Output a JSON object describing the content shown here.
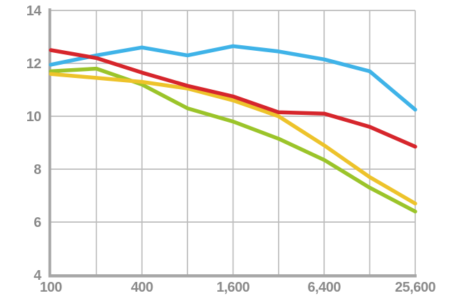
{
  "chart_data": {
    "type": "line",
    "title": "",
    "xlabel": "",
    "ylabel": "",
    "x_scale": "log2",
    "x_ticks": [
      100,
      200,
      400,
      800,
      1600,
      3200,
      6400,
      12800,
      25600
    ],
    "x_labeled_ticks": [
      {
        "value": 100,
        "label": "100"
      },
      {
        "value": 400,
        "label": "400"
      },
      {
        "value": 1600,
        "label": "1,600"
      },
      {
        "value": 6400,
        "label": "6,400"
      },
      {
        "value": 25600,
        "label": "25,600"
      }
    ],
    "y_min": 4,
    "y_max": 14,
    "y_ticks": [
      {
        "value": 14,
        "label": "14"
      },
      {
        "value": 12,
        "label": "12"
      },
      {
        "value": 10,
        "label": "10"
      },
      {
        "value": 8,
        "label": "8"
      },
      {
        "value": 6,
        "label": "6"
      },
      {
        "value": 4,
        "label": "4"
      }
    ],
    "grid": true,
    "legend": "none",
    "series": [
      {
        "name": "blue-series",
        "color": "#3FB3E8",
        "values": [
          11.95,
          12.3,
          12.6,
          12.3,
          12.65,
          12.45,
          12.15,
          11.7,
          10.25
        ]
      },
      {
        "name": "green-series",
        "color": "#9BC42A",
        "values": [
          11.7,
          11.8,
          11.2,
          10.3,
          9.8,
          9.15,
          8.35,
          7.3,
          6.4
        ]
      },
      {
        "name": "yellow-series",
        "color": "#EDC32B",
        "values": [
          11.6,
          11.45,
          11.3,
          11.05,
          10.6,
          10.0,
          8.9,
          7.7,
          6.7
        ]
      },
      {
        "name": "red-series",
        "color": "#D6262C",
        "values": [
          12.5,
          12.2,
          11.65,
          11.15,
          10.75,
          10.15,
          10.1,
          9.6,
          8.85
        ]
      }
    ],
    "colors": {
      "background": "#FFFFFF",
      "gridline": "#BCBCBC",
      "axis": "#A7A7A7",
      "tick_text": "#8A8A8A"
    }
  }
}
